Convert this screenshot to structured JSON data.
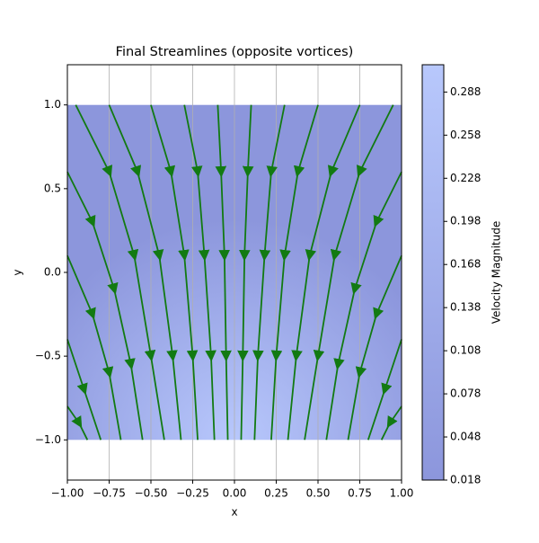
{
  "chart_data": {
    "type": "streamplot",
    "title": "Final Streamlines (opposite vortices)",
    "xlabel": "x",
    "ylabel": "y",
    "xlim": [
      -1,
      1
    ],
    "ylim": [
      -1.24,
      1.24
    ],
    "xticks": [
      {
        "value": -1,
        "label": "−1.00"
      },
      {
        "value": -0.75,
        "label": "−0.75"
      },
      {
        "value": -0.5,
        "label": "−0.50"
      },
      {
        "value": -0.25,
        "label": "−0.25"
      },
      {
        "value": 0,
        "label": "0.00"
      },
      {
        "value": 0.25,
        "label": "0.25"
      },
      {
        "value": 0.5,
        "label": "0.50"
      },
      {
        "value": 0.75,
        "label": "0.75"
      },
      {
        "value": 1,
        "label": "1.00"
      }
    ],
    "yticks": [
      {
        "value": -1,
        "label": "−1.0"
      },
      {
        "value": -0.5,
        "label": "−0.5"
      },
      {
        "value": 0,
        "label": "0.0"
      },
      {
        "value": 0.5,
        "label": "0.5"
      },
      {
        "value": 1,
        "label": "1.0"
      }
    ],
    "grid": "x",
    "field_xlim": [
      -1,
      1
    ],
    "field_ylim": [
      -1,
      1
    ],
    "cmap_colors": [
      "#8c96dc",
      "#b8c8fc"
    ],
    "line_color": "#127a12",
    "colorbar": {
      "label": "Velocity Magnitude",
      "clim": [
        0.018,
        0.307
      ],
      "ticks": [
        0.018,
        0.048,
        0.078,
        0.108,
        0.138,
        0.168,
        0.198,
        0.228,
        0.258,
        0.288
      ]
    },
    "streamlines": [
      {
        "x": [
          -0.95,
          -0.75,
          -0.6,
          -0.5,
          -0.42
        ],
        "y": [
          1,
          0.6,
          0.1,
          -0.5,
          -1
        ]
      },
      {
        "x": [
          -0.75,
          -0.58,
          -0.45,
          -0.37,
          -0.32
        ],
        "y": [
          1,
          0.6,
          0.1,
          -0.5,
          -1
        ]
      },
      {
        "x": [
          -0.5,
          -0.38,
          -0.3,
          -0.25,
          -0.22
        ],
        "y": [
          1,
          0.6,
          0.1,
          -0.5,
          -1
        ]
      },
      {
        "x": [
          -0.3,
          -0.22,
          -0.18,
          -0.14,
          -0.12
        ],
        "y": [
          1,
          0.6,
          0.1,
          -0.5,
          -1
        ]
      },
      {
        "x": [
          -0.1,
          -0.08,
          -0.06,
          -0.05,
          -0.04
        ],
        "y": [
          1,
          0.6,
          0.1,
          -0.5,
          -1
        ]
      },
      {
        "x": [
          0.1,
          0.08,
          0.06,
          0.05,
          0.04
        ],
        "y": [
          1,
          0.6,
          0.1,
          -0.5,
          -1
        ]
      },
      {
        "x": [
          0.3,
          0.22,
          0.18,
          0.14,
          0.12
        ],
        "y": [
          1,
          0.6,
          0.1,
          -0.5,
          -1
        ]
      },
      {
        "x": [
          0.5,
          0.38,
          0.3,
          0.25,
          0.22
        ],
        "y": [
          1,
          0.6,
          0.1,
          -0.5,
          -1
        ]
      },
      {
        "x": [
          0.75,
          0.58,
          0.45,
          0.37,
          0.32
        ],
        "y": [
          1,
          0.6,
          0.1,
          -0.5,
          -1
        ]
      },
      {
        "x": [
          0.95,
          0.75,
          0.6,
          0.5,
          0.42
        ],
        "y": [
          1,
          0.6,
          0.1,
          -0.5,
          -1
        ]
      },
      {
        "x": [
          -1,
          -0.85,
          -0.72,
          -0.62,
          -0.55
        ],
        "y": [
          0.6,
          0.3,
          -0.1,
          -0.55,
          -1
        ]
      },
      {
        "x": [
          -1,
          -0.85,
          -0.75,
          -0.68
        ],
        "y": [
          0.1,
          -0.25,
          -0.6,
          -1
        ]
      },
      {
        "x": [
          -1,
          -0.9,
          -0.8
        ],
        "y": [
          -0.4,
          -0.7,
          -1
        ]
      },
      {
        "x": [
          -1,
          -0.93,
          -0.88
        ],
        "y": [
          -0.8,
          -0.9,
          -1
        ]
      },
      {
        "x": [
          1,
          0.85,
          0.72,
          0.62,
          0.55
        ],
        "y": [
          0.6,
          0.3,
          -0.1,
          -0.55,
          -1
        ]
      },
      {
        "x": [
          1,
          0.85,
          0.75,
          0.68
        ],
        "y": [
          0.1,
          -0.25,
          -0.6,
          -1
        ]
      },
      {
        "x": [
          1,
          0.9,
          0.8
        ],
        "y": [
          -0.4,
          -0.7,
          -1
        ]
      },
      {
        "x": [
          1,
          0.93,
          0.88
        ],
        "y": [
          -0.8,
          -0.9,
          -1
        ]
      }
    ]
  }
}
